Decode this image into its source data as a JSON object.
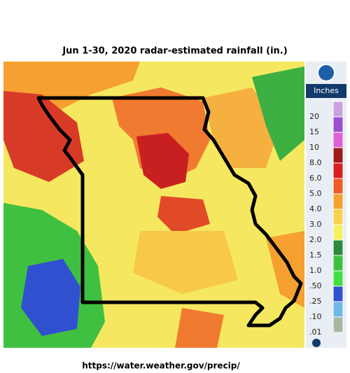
{
  "title": "Jun 1-30, 2020 radar-estimated rainfall (in.)",
  "legend": {
    "header": "Inches",
    "items": [
      {
        "label": "20",
        "color": "#c9a0e0"
      },
      {
        "label": "15",
        "color": "#9a4fd0"
      },
      {
        "label": "10",
        "color": "#e060d8"
      },
      {
        "label": "8.0",
        "color": "#a01818"
      },
      {
        "label": "6.0",
        "color": "#d82020"
      },
      {
        "label": "5.0",
        "color": "#f05a28"
      },
      {
        "label": "4.0",
        "color": "#f5a030"
      },
      {
        "label": "3.0",
        "color": "#f8d050"
      },
      {
        "label": "2.0",
        "color": "#f5f060"
      },
      {
        "label": "1.5",
        "color": "#2e8a3a"
      },
      {
        "label": "1.0",
        "color": "#3cc040"
      },
      {
        "label": ".50",
        "color": "#40e040"
      },
      {
        "label": ".25",
        "color": "#3050d0"
      },
      {
        "label": ".10",
        "color": "#6fb8e8"
      },
      {
        "label": ".01",
        "color": "#a8b8a0"
      }
    ]
  },
  "footer": "https://water.weather.gov/precip/"
}
